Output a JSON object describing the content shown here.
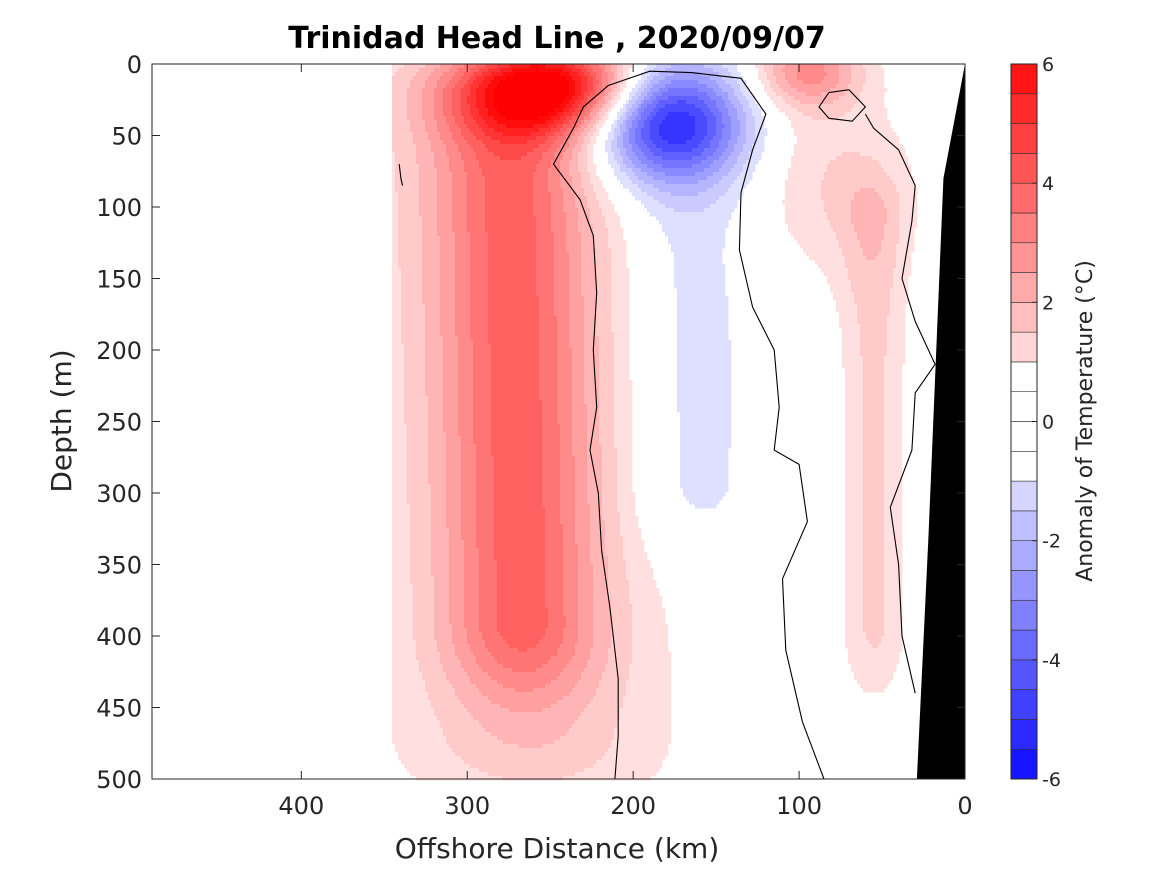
{
  "chart_data": {
    "type": "heatmap",
    "subtype": "filled-contour-section",
    "title": "Trinidad Head Line , 2020/09/07",
    "xlabel": "Offshore Distance (km)",
    "ylabel": "Depth (m)",
    "xlim": [
      490,
      0
    ],
    "ylim": [
      0,
      500
    ],
    "x_reversed": true,
    "y_reversed": true,
    "x_ticks": [
      400,
      300,
      200,
      100,
      0
    ],
    "x_tick_labels": [
      "400",
      "300",
      "200",
      "100",
      "0"
    ],
    "y_ticks": [
      0,
      50,
      100,
      150,
      200,
      250,
      300,
      350,
      400,
      450,
      500
    ],
    "y_tick_labels": [
      "0",
      "50",
      "100",
      "150",
      "200",
      "250",
      "300",
      "350",
      "400",
      "450",
      "500"
    ],
    "grid": false,
    "colorbar": {
      "label": "Anomaly of Temperature (°C)",
      "limits": [
        -6,
        6
      ],
      "level_step": 0.5,
      "ticks": [
        -6,
        -4,
        -2,
        0,
        2,
        4,
        6
      ],
      "tick_labels": [
        "-6",
        "-4",
        "-2",
        "0",
        "2",
        "4",
        "6"
      ],
      "colormap": "blue-white-red",
      "colors": {
        "negative": "#0000ff",
        "zero": "#ffffff",
        "positive": "#ff0000"
      }
    },
    "zero_contour_color": "#000000",
    "bathymetry_color": "#000000",
    "features": [
      {
        "name": "warm surface core",
        "x_km": 250,
        "depth_m": 15,
        "anomaly": 5.5
      },
      {
        "name": "warm subsurface band",
        "x_km": 275,
        "depth_range_m": [
          50,
          390
        ],
        "anomaly": 2.5
      },
      {
        "name": "cold subsurface core",
        "x_km": 180,
        "depth_m": 38,
        "anomaly": -5
      },
      {
        "name": "weak cold tongue",
        "x_km": 165,
        "depth_range_m": [
          100,
          290
        ],
        "anomaly": -0.8
      },
      {
        "name": "warm surface patch",
        "x_km": 95,
        "depth_m": 5,
        "anomaly": 2.5
      },
      {
        "name": "weak warm nearshore band",
        "x_km": 55,
        "depth_range_m": [
          110,
          390
        ],
        "anomaly": 1
      }
    ],
    "bathymetry": {
      "x_km": [
        0,
        0,
        8,
        14,
        20,
        25,
        25
      ],
      "depth_m": [
        0,
        500,
        500,
        330,
        100,
        500,
        500
      ]
    }
  }
}
